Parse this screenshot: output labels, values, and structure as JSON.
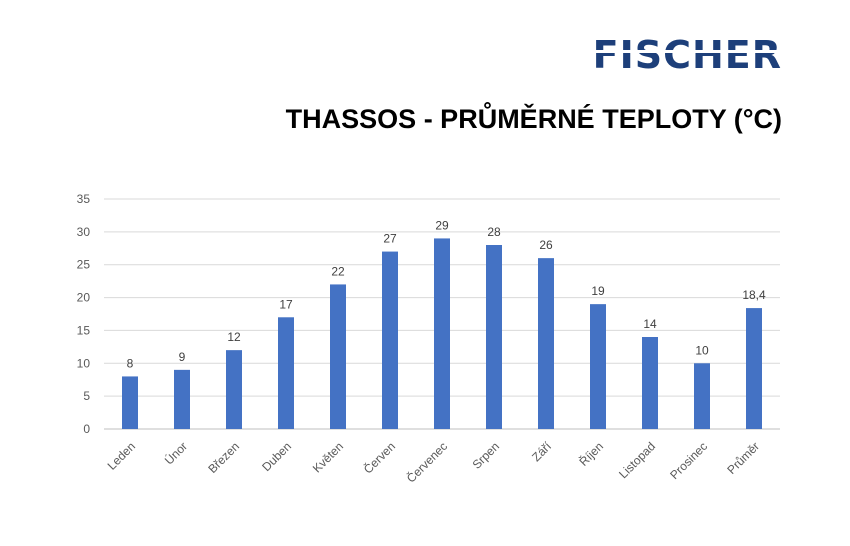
{
  "brand": {
    "logo_text": "FISCHER",
    "logo_color": "#1d3f7a"
  },
  "chart_data": {
    "type": "bar",
    "title": "THASSOS - PRŮMĚRNÉ TEPLOTY (°C)",
    "categories": [
      "Leden",
      "Únor",
      "Březen",
      "Duben",
      "Květen",
      "Červen",
      "Červenec",
      "Srpen",
      "Září",
      "Říjen",
      "Listopad",
      "Prosinec",
      "Průměr"
    ],
    "values": [
      8,
      9,
      12,
      17,
      22,
      27,
      29,
      28,
      26,
      19,
      14,
      10,
      18.4
    ],
    "value_labels": [
      "8",
      "9",
      "12",
      "17",
      "22",
      "27",
      "29",
      "28",
      "26",
      "19",
      "14",
      "10",
      "18,4"
    ],
    "ylim": [
      0,
      35
    ],
    "yticks": [
      0,
      5,
      10,
      15,
      20,
      25,
      30,
      35
    ],
    "grid": true,
    "legend": "none",
    "bar_color": "#4472c4"
  }
}
